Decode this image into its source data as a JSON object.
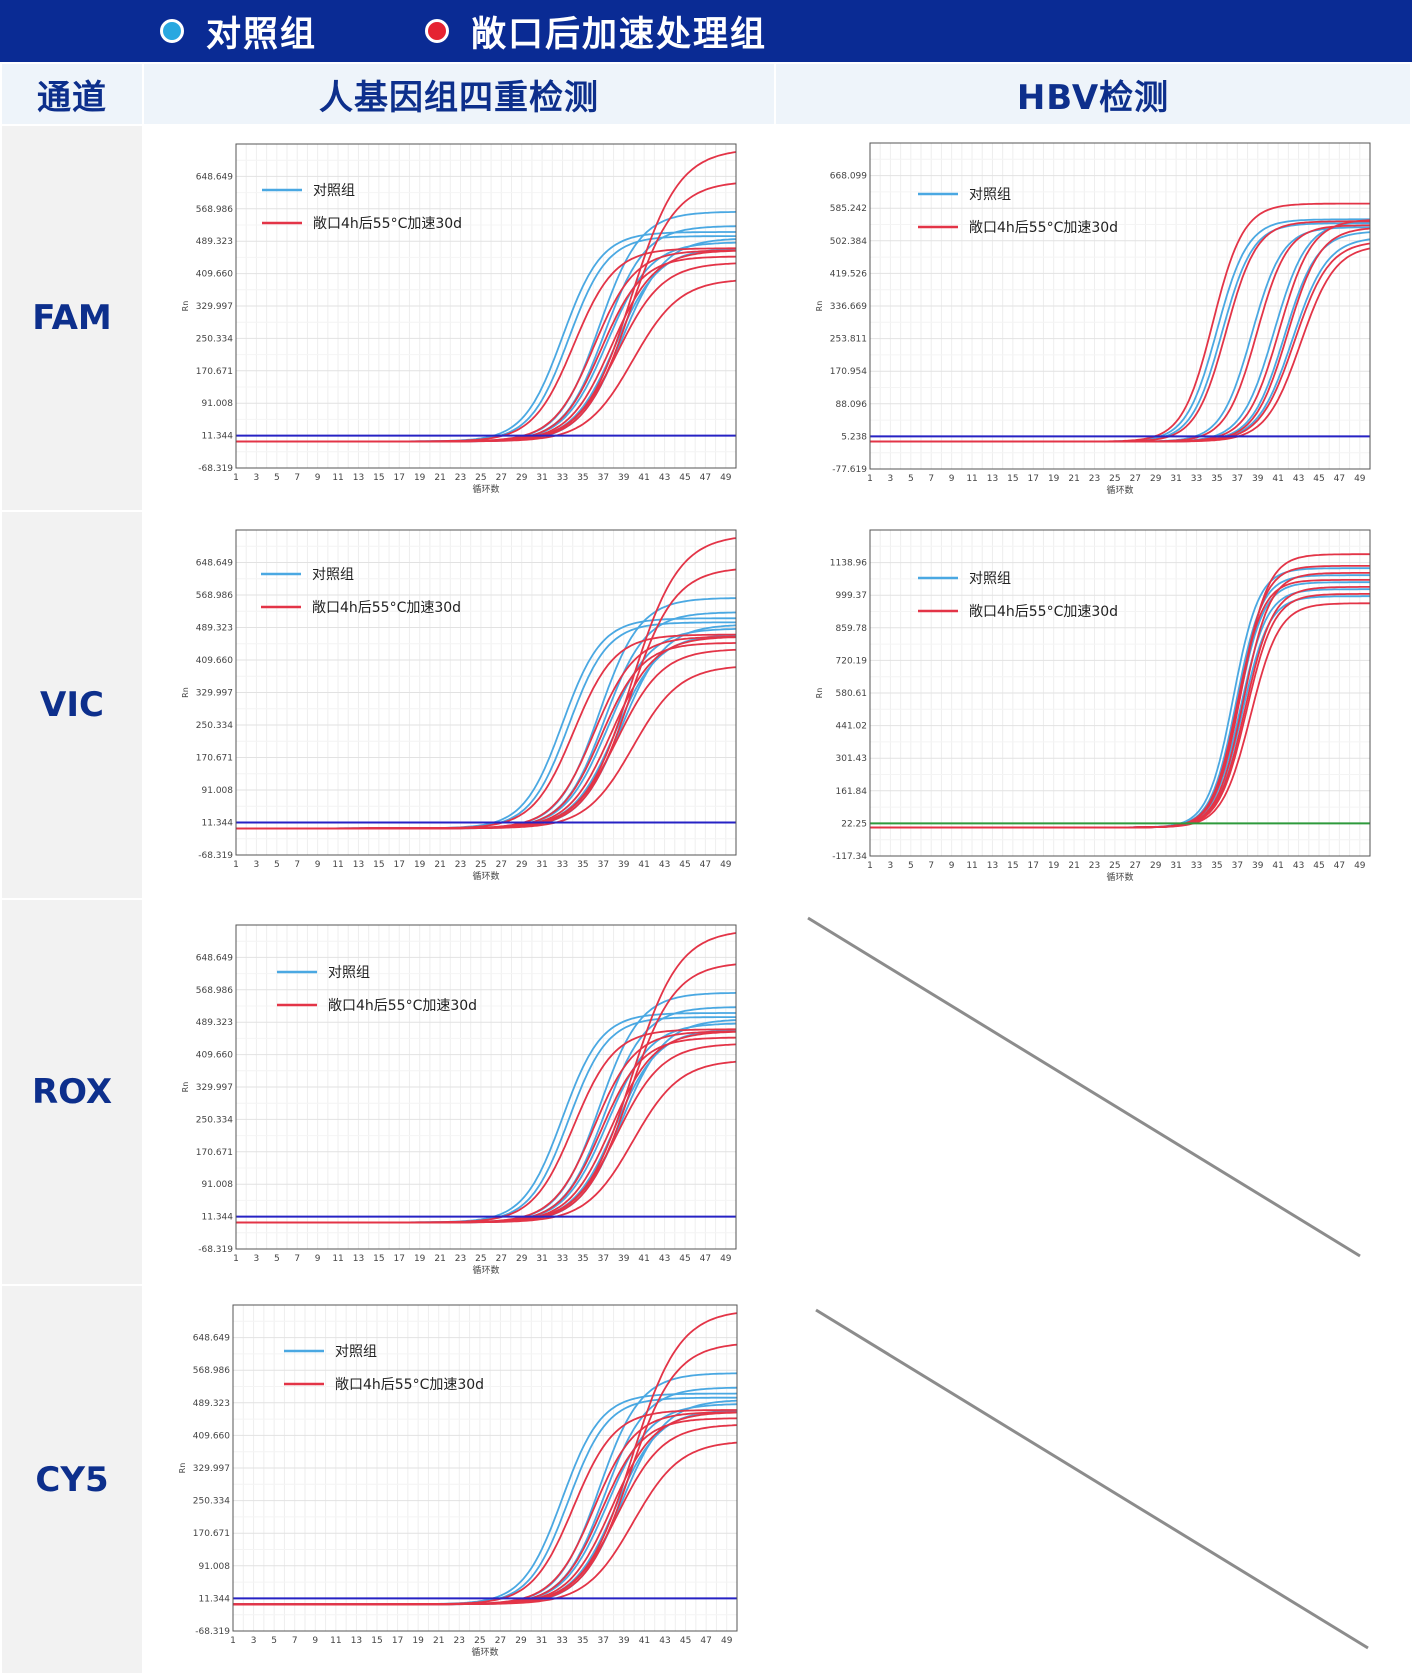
{
  "legend": {
    "control": {
      "label": "对照组",
      "color": "#29a8e0"
    },
    "treated": {
      "label": "敞口后加速处理组",
      "color": "#e52332"
    }
  },
  "header": {
    "channel": "通道",
    "human": "人基因组四重检测",
    "hbv": "HBV检测"
  },
  "rows": [
    {
      "label": "FAM"
    },
    {
      "label": "VIC"
    },
    {
      "label": "ROX"
    },
    {
      "label": "CY5"
    }
  ],
  "colors": {
    "header_band": "#0a2b94",
    "control_curve": "#4aa8e2",
    "treated_curve": "#e33447",
    "threshold_blue": "#2622c4",
    "threshold_green": "#2e9a3c",
    "diagonal": "#8c8c8c"
  },
  "chart_data": [
    {
      "id": "fam-human",
      "type": "line",
      "ylabel": "Rn",
      "xlabel": "循环数",
      "legend": [
        "对照组",
        "敞口4h后55°C加速30d"
      ],
      "yticks": [
        "648.649",
        "568.986",
        "489.323",
        "409.660",
        "329.997",
        "250.334",
        "170.671",
        "91.008",
        "11.344",
        "-68.319"
      ],
      "ylim": [
        -68.319,
        728.312
      ],
      "xticks": [
        1,
        3,
        5,
        7,
        9,
        11,
        13,
        15,
        17,
        19,
        21,
        23,
        25,
        27,
        29,
        31,
        33,
        35,
        37,
        39,
        41,
        43,
        45,
        47,
        49
      ],
      "xlim": [
        1,
        50
      ],
      "threshold": 11.344,
      "threshold_color": "blue",
      "baseline": -3,
      "series": [
        {
          "group": "control",
          "plateau": 515,
          "midpoint": 33.0,
          "slope": 1.9
        },
        {
          "group": "control",
          "plateau": 505,
          "midpoint": 33.6,
          "slope": 1.9
        },
        {
          "group": "control",
          "plateau": 565,
          "midpoint": 36.6,
          "slope": 2.0
        },
        {
          "group": "control",
          "plateau": 530,
          "midpoint": 37.1,
          "slope": 2.0
        },
        {
          "group": "control",
          "plateau": 490,
          "midpoint": 37.4,
          "slope": 2.1
        },
        {
          "group": "control",
          "plateau": 475,
          "midpoint": 38.2,
          "slope": 2.1
        },
        {
          "group": "control",
          "plateau": 500,
          "midpoint": 38.8,
          "slope": 2.1
        },
        {
          "group": "treated",
          "plateau": 475,
          "midpoint": 34.1,
          "slope": 2.0
        },
        {
          "group": "treated",
          "plateau": 470,
          "midpoint": 36.1,
          "slope": 2.0
        },
        {
          "group": "treated",
          "plateau": 455,
          "midpoint": 36.8,
          "slope": 2.0
        },
        {
          "group": "treated",
          "plateau": 720,
          "midpoint": 39.8,
          "slope": 2.3
        },
        {
          "group": "treated",
          "plateau": 640,
          "midpoint": 39.6,
          "slope": 2.2
        },
        {
          "group": "treated",
          "plateau": 470,
          "midpoint": 37.8,
          "slope": 2.1
        },
        {
          "group": "treated",
          "plateau": 440,
          "midpoint": 38.4,
          "slope": 2.2
        },
        {
          "group": "treated",
          "plateau": 400,
          "midpoint": 39.9,
          "slope": 2.3
        }
      ]
    },
    {
      "id": "fam-hbv",
      "type": "line",
      "ylabel": "Rn",
      "xlabel": "循环数",
      "legend": [
        "对照组",
        "敞口4h后55°C加速30d"
      ],
      "yticks": [
        "668.099",
        "585.242",
        "502.384",
        "419.526",
        "336.669",
        "253.811",
        "170.954",
        "88.096",
        "5.238",
        "-77.619"
      ],
      "ylim": [
        -77.619,
        750.957
      ],
      "xticks": [
        1,
        3,
        5,
        7,
        9,
        11,
        13,
        15,
        17,
        19,
        21,
        23,
        25,
        27,
        29,
        31,
        33,
        35,
        37,
        39,
        41,
        43,
        45,
        47,
        49
      ],
      "xlim": [
        1,
        50
      ],
      "threshold": 5.238,
      "threshold_color": "blue",
      "baseline": -8,
      "series": [
        {
          "group": "control",
          "plateau": 565,
          "midpoint": 35.0,
          "slope": 1.5
        },
        {
          "group": "control",
          "plateau": 555,
          "midpoint": 35.5,
          "slope": 1.5
        },
        {
          "group": "control",
          "plateau": 545,
          "midpoint": 38.4,
          "slope": 1.5
        },
        {
          "group": "control",
          "plateau": 560,
          "midpoint": 40.6,
          "slope": 1.6
        },
        {
          "group": "control",
          "plateau": 535,
          "midpoint": 41.6,
          "slope": 1.6
        },
        {
          "group": "control",
          "plateau": 520,
          "midpoint": 42.4,
          "slope": 1.7
        },
        {
          "group": "treated",
          "plateau": 605,
          "midpoint": 34.6,
          "slope": 1.5
        },
        {
          "group": "treated",
          "plateau": 560,
          "midpoint": 35.9,
          "slope": 1.5
        },
        {
          "group": "treated",
          "plateau": 550,
          "midpoint": 38.9,
          "slope": 1.5
        },
        {
          "group": "treated",
          "plateau": 565,
          "midpoint": 41.1,
          "slope": 1.6
        },
        {
          "group": "treated",
          "plateau": 545,
          "midpoint": 41.9,
          "slope": 1.6
        },
        {
          "group": "treated",
          "plateau": 510,
          "midpoint": 42.6,
          "slope": 1.7
        },
        {
          "group": "treated",
          "plateau": 500,
          "midpoint": 43.2,
          "slope": 1.7
        }
      ]
    },
    {
      "id": "vic-human",
      "type": "line",
      "ylabel": "Rn",
      "xlabel": "循环数",
      "legend": [
        "对照组",
        "敞口4h后55°C加速30d"
      ],
      "yticks": [
        "648.649",
        "568.986",
        "489.323",
        "409.660",
        "329.997",
        "250.334",
        "170.671",
        "91.008",
        "11.344",
        "-68.319"
      ],
      "ylim": [
        -68.319,
        728.312
      ],
      "xticks": [
        1,
        3,
        5,
        7,
        9,
        11,
        13,
        15,
        17,
        19,
        21,
        23,
        25,
        27,
        29,
        31,
        33,
        35,
        37,
        39,
        41,
        43,
        45,
        47,
        49
      ],
      "xlim": [
        1,
        50
      ],
      "threshold": 11.344,
      "threshold_color": "blue",
      "baseline": -3,
      "series": [
        {
          "group": "control",
          "plateau": 515,
          "midpoint": 33.0,
          "slope": 1.9
        },
        {
          "group": "control",
          "plateau": 505,
          "midpoint": 33.6,
          "slope": 1.9
        },
        {
          "group": "control",
          "plateau": 565,
          "midpoint": 36.6,
          "slope": 2.0
        },
        {
          "group": "control",
          "plateau": 530,
          "midpoint": 37.1,
          "slope": 2.0
        },
        {
          "group": "control",
          "plateau": 490,
          "midpoint": 37.4,
          "slope": 2.1
        },
        {
          "group": "control",
          "plateau": 475,
          "midpoint": 38.2,
          "slope": 2.1
        },
        {
          "group": "control",
          "plateau": 500,
          "midpoint": 38.8,
          "slope": 2.1
        },
        {
          "group": "treated",
          "plateau": 475,
          "midpoint": 34.1,
          "slope": 2.0
        },
        {
          "group": "treated",
          "plateau": 470,
          "midpoint": 36.1,
          "slope": 2.0
        },
        {
          "group": "treated",
          "plateau": 455,
          "midpoint": 36.8,
          "slope": 2.0
        },
        {
          "group": "treated",
          "plateau": 720,
          "midpoint": 39.8,
          "slope": 2.3
        },
        {
          "group": "treated",
          "plateau": 640,
          "midpoint": 39.6,
          "slope": 2.2
        },
        {
          "group": "treated",
          "plateau": 470,
          "midpoint": 37.8,
          "slope": 2.1
        },
        {
          "group": "treated",
          "plateau": 440,
          "midpoint": 38.4,
          "slope": 2.2
        },
        {
          "group": "treated",
          "plateau": 400,
          "midpoint": 39.9,
          "slope": 2.3
        }
      ]
    },
    {
      "id": "vic-hbv",
      "type": "line",
      "ylabel": "Rn",
      "xlabel": "循环数",
      "legend": [
        "对照组",
        "敞口4h后55°C加速30d"
      ],
      "yticks": [
        "1138.96",
        "999.37",
        "859.78",
        "720.19",
        "580.61",
        "441.02",
        "301.43",
        "161.84",
        "22.25",
        "-117.34"
      ],
      "ylim": [
        -117.34,
        1278.55
      ],
      "xticks": [
        1,
        3,
        5,
        7,
        9,
        11,
        13,
        15,
        17,
        19,
        21,
        23,
        25,
        27,
        29,
        31,
        33,
        35,
        37,
        39,
        41,
        43,
        45,
        47,
        49
      ],
      "xlim": [
        1,
        50
      ],
      "threshold": 22.25,
      "threshold_color": "green",
      "baseline": 5,
      "series": [
        {
          "group": "control",
          "plateau": 1110,
          "midpoint": 36.6,
          "slope": 1.25
        },
        {
          "group": "control",
          "plateau": 1080,
          "midpoint": 36.9,
          "slope": 1.25
        },
        {
          "group": "control",
          "plateau": 1050,
          "midpoint": 37.1,
          "slope": 1.25
        },
        {
          "group": "control",
          "plateau": 1020,
          "midpoint": 37.3,
          "slope": 1.3
        },
        {
          "group": "control",
          "plateau": 990,
          "midpoint": 37.5,
          "slope": 1.3
        },
        {
          "group": "treated",
          "plateau": 1170,
          "midpoint": 37.4,
          "slope": 1.3
        },
        {
          "group": "treated",
          "plateau": 1120,
          "midpoint": 37.2,
          "slope": 1.25
        },
        {
          "group": "treated",
          "plateau": 1090,
          "midpoint": 37.6,
          "slope": 1.3
        },
        {
          "group": "treated",
          "plateau": 1060,
          "midpoint": 37.0,
          "slope": 1.25
        },
        {
          "group": "treated",
          "plateau": 1030,
          "midpoint": 37.8,
          "slope": 1.35
        },
        {
          "group": "treated",
          "plateau": 1000,
          "midpoint": 37.9,
          "slope": 1.35
        },
        {
          "group": "treated",
          "plateau": 960,
          "midpoint": 38.3,
          "slope": 1.4
        }
      ]
    },
    {
      "id": "rox-human",
      "type": "line",
      "ylabel": "Rn",
      "xlabel": "循环数",
      "legend": [
        "对照组",
        "敞口4h后55°C加速30d"
      ],
      "yticks": [
        "648.649",
        "568.986",
        "489.323",
        "409.660",
        "329.997",
        "250.334",
        "170.671",
        "91.008",
        "11.344",
        "-68.319"
      ],
      "ylim": [
        -68.319,
        728.312
      ],
      "xticks": [
        1,
        3,
        5,
        7,
        9,
        11,
        13,
        15,
        17,
        19,
        21,
        23,
        25,
        27,
        29,
        31,
        33,
        35,
        37,
        39,
        41,
        43,
        45,
        47,
        49
      ],
      "xlim": [
        1,
        50
      ],
      "threshold": 11.344,
      "threshold_color": "blue",
      "baseline": -3,
      "series": [
        {
          "group": "control",
          "plateau": 515,
          "midpoint": 33.0,
          "slope": 1.9
        },
        {
          "group": "control",
          "plateau": 505,
          "midpoint": 33.6,
          "slope": 1.9
        },
        {
          "group": "control",
          "plateau": 565,
          "midpoint": 36.6,
          "slope": 2.0
        },
        {
          "group": "control",
          "plateau": 530,
          "midpoint": 37.1,
          "slope": 2.0
        },
        {
          "group": "control",
          "plateau": 490,
          "midpoint": 37.4,
          "slope": 2.1
        },
        {
          "group": "control",
          "plateau": 475,
          "midpoint": 38.2,
          "slope": 2.1
        },
        {
          "group": "control",
          "plateau": 500,
          "midpoint": 38.8,
          "slope": 2.1
        },
        {
          "group": "treated",
          "plateau": 475,
          "midpoint": 34.1,
          "slope": 2.0
        },
        {
          "group": "treated",
          "plateau": 470,
          "midpoint": 36.1,
          "slope": 2.0
        },
        {
          "group": "treated",
          "plateau": 455,
          "midpoint": 36.8,
          "slope": 2.0
        },
        {
          "group": "treated",
          "plateau": 720,
          "midpoint": 39.8,
          "slope": 2.3
        },
        {
          "group": "treated",
          "plateau": 640,
          "midpoint": 39.6,
          "slope": 2.2
        },
        {
          "group": "treated",
          "plateau": 470,
          "midpoint": 37.8,
          "slope": 2.1
        },
        {
          "group": "treated",
          "plateau": 440,
          "midpoint": 38.4,
          "slope": 2.2
        },
        {
          "group": "treated",
          "plateau": 400,
          "midpoint": 39.9,
          "slope": 2.3
        }
      ]
    },
    {
      "id": "cy5-human",
      "type": "line",
      "ylabel": "Rn",
      "xlabel": "循环数",
      "legend": [
        "对照组",
        "敞口4h后55°C加速30d"
      ],
      "yticks": [
        "648.649",
        "568.986",
        "489.323",
        "409.660",
        "329.997",
        "250.334",
        "170.671",
        "91.008",
        "11.344",
        "-68.319"
      ],
      "ylim": [
        -68.319,
        728.312
      ],
      "xticks": [
        1,
        3,
        5,
        7,
        9,
        11,
        13,
        15,
        17,
        19,
        21,
        23,
        25,
        27,
        29,
        31,
        33,
        35,
        37,
        39,
        41,
        43,
        45,
        47,
        49
      ],
      "xlim": [
        1,
        50
      ],
      "threshold": 11.344,
      "threshold_color": "blue",
      "baseline": -3,
      "series": [
        {
          "group": "control",
          "plateau": 515,
          "midpoint": 33.0,
          "slope": 1.9
        },
        {
          "group": "control",
          "plateau": 505,
          "midpoint": 33.6,
          "slope": 1.9
        },
        {
          "group": "control",
          "plateau": 565,
          "midpoint": 36.6,
          "slope": 2.0
        },
        {
          "group": "control",
          "plateau": 530,
          "midpoint": 37.1,
          "slope": 2.0
        },
        {
          "group": "control",
          "plateau": 490,
          "midpoint": 37.4,
          "slope": 2.1
        },
        {
          "group": "control",
          "plateau": 475,
          "midpoint": 38.2,
          "slope": 2.1
        },
        {
          "group": "control",
          "plateau": 500,
          "midpoint": 38.8,
          "slope": 2.1
        },
        {
          "group": "treated",
          "plateau": 475,
          "midpoint": 34.1,
          "slope": 2.0
        },
        {
          "group": "treated",
          "plateau": 470,
          "midpoint": 36.1,
          "slope": 2.0
        },
        {
          "group": "treated",
          "plateau": 455,
          "midpoint": 36.8,
          "slope": 2.0
        },
        {
          "group": "treated",
          "plateau": 720,
          "midpoint": 39.8,
          "slope": 2.3
        },
        {
          "group": "treated",
          "plateau": 640,
          "midpoint": 39.6,
          "slope": 2.2
        },
        {
          "group": "treated",
          "plateau": 470,
          "midpoint": 37.8,
          "slope": 2.1
        },
        {
          "group": "treated",
          "plateau": 440,
          "midpoint": 38.4,
          "slope": 2.2
        },
        {
          "group": "treated",
          "plateau": 400,
          "midpoint": 39.9,
          "slope": 2.3
        }
      ]
    }
  ]
}
